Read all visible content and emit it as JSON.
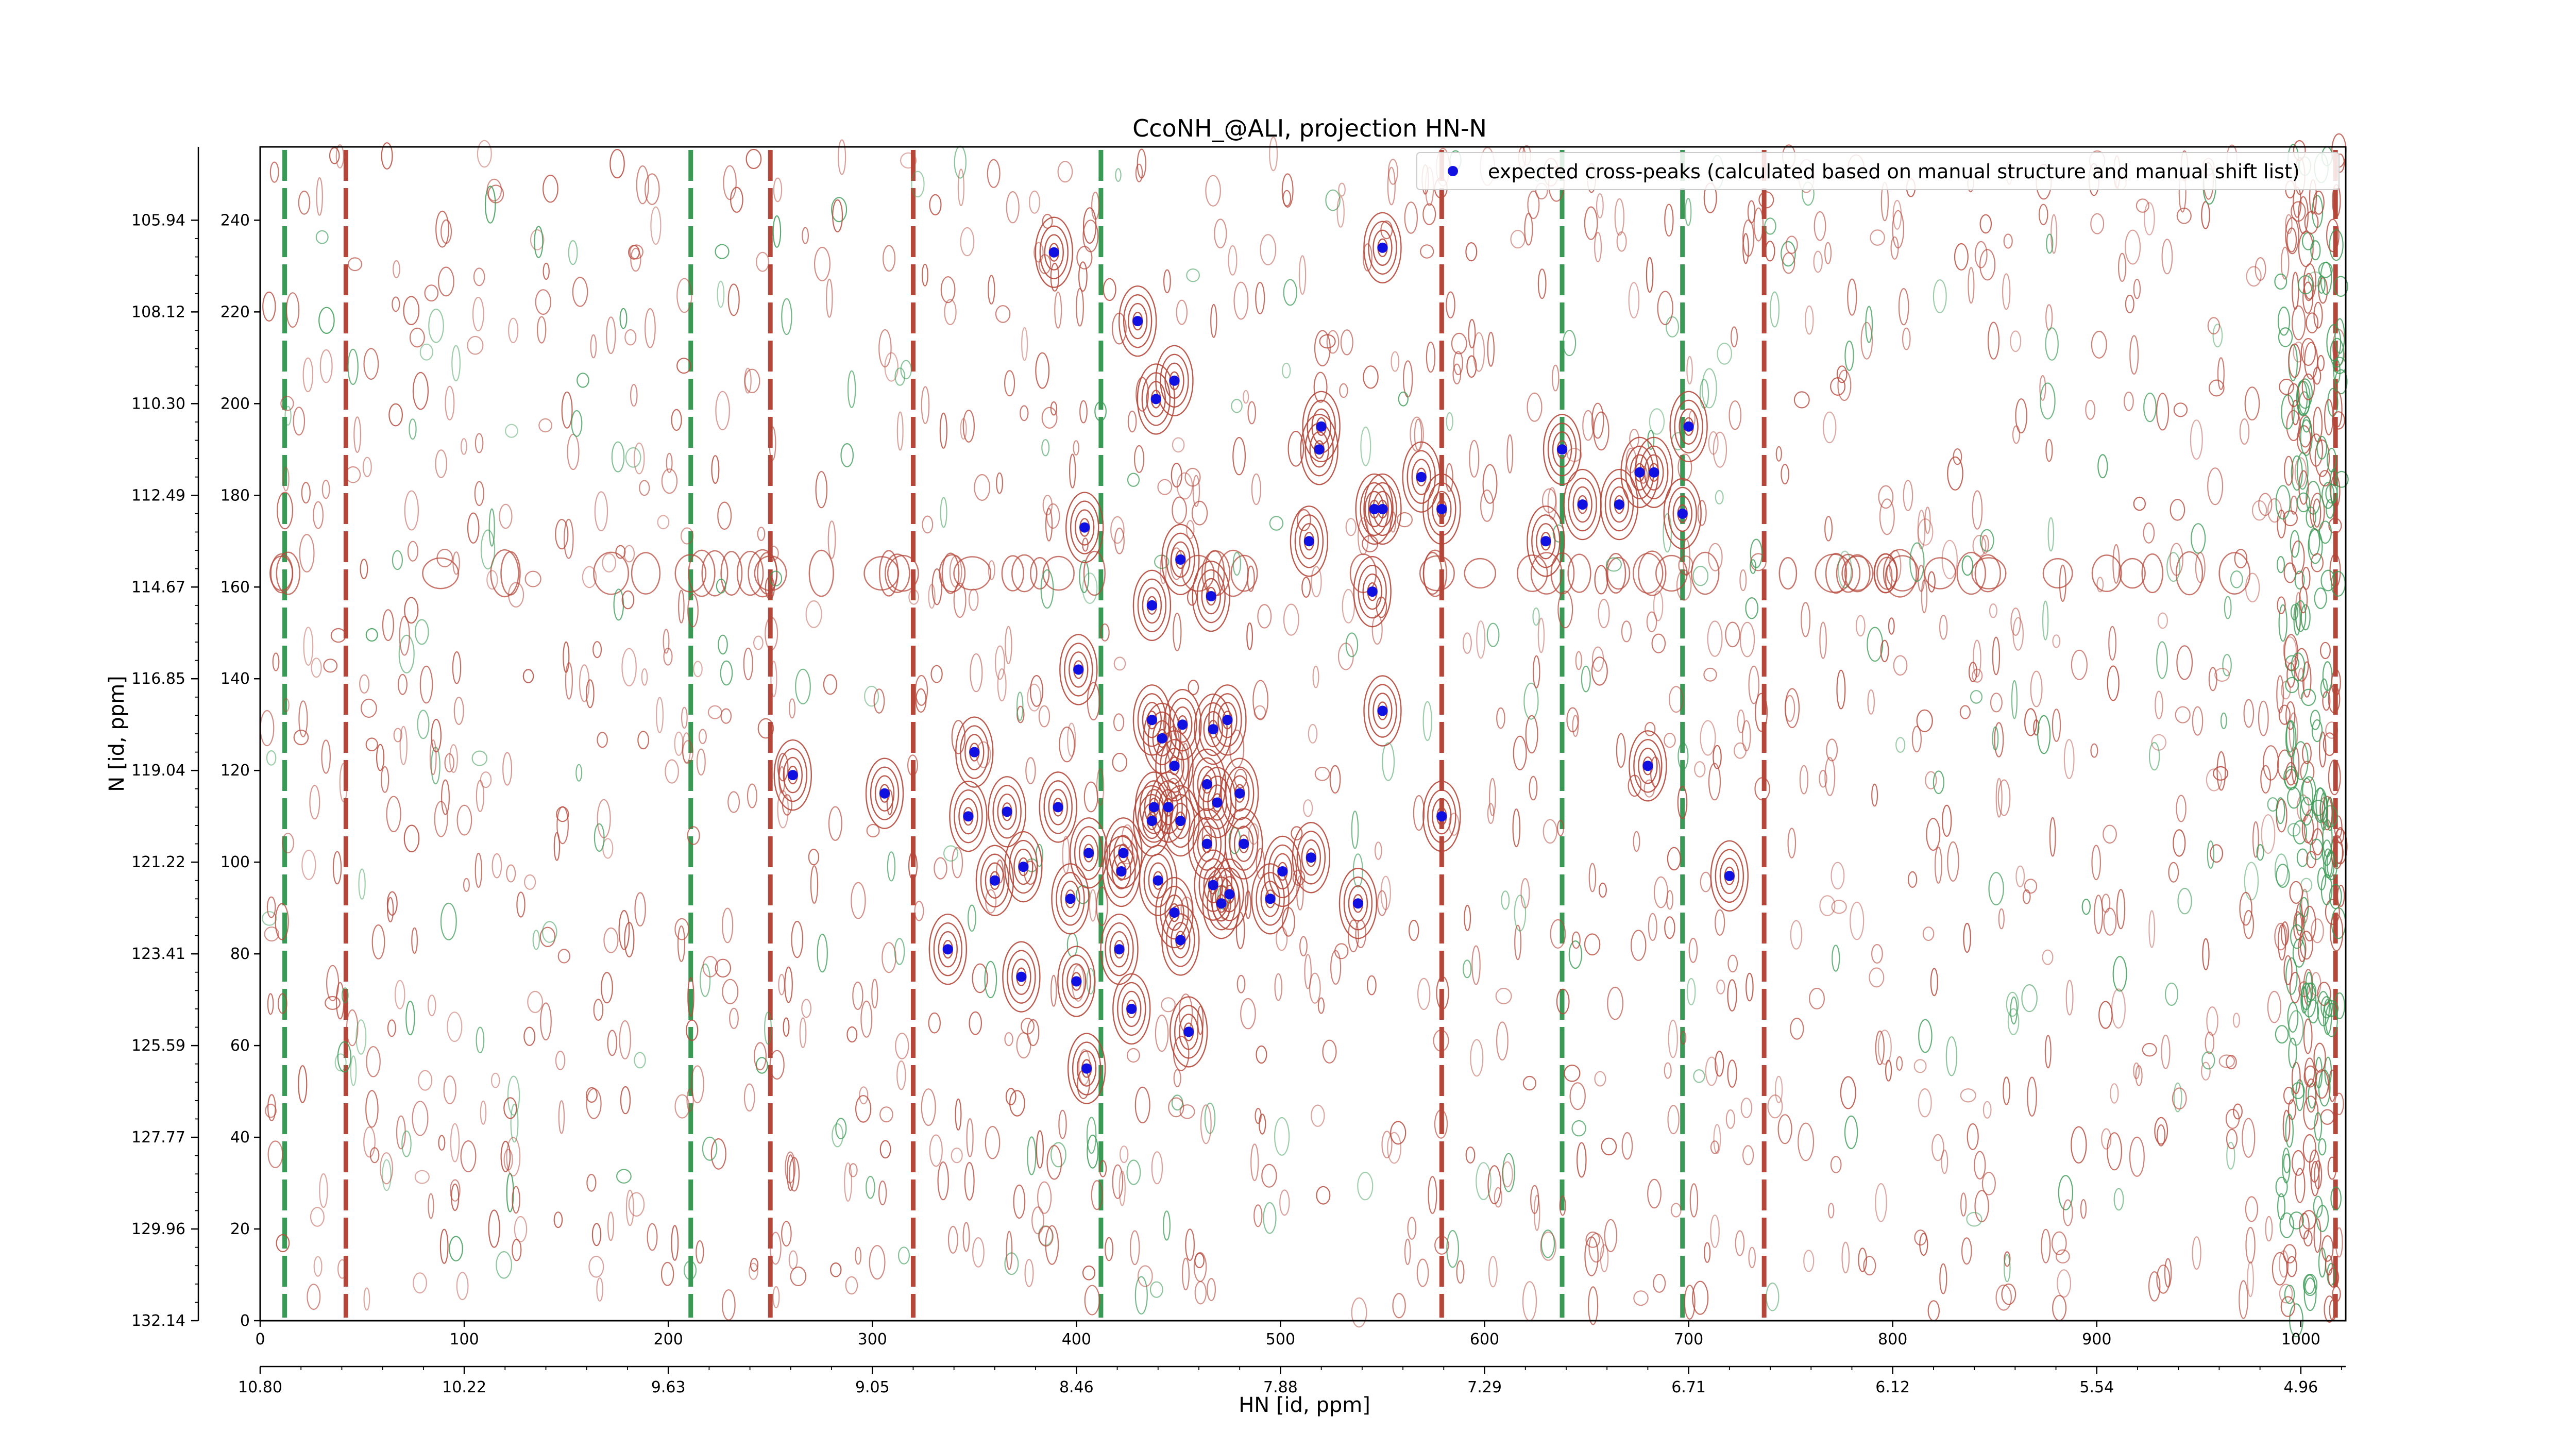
{
  "chart_data": {
    "type": "scatter",
    "title": "CcoNH_@ALI, projection HN-N",
    "xlabel": "HN [id, ppm]",
    "ylabel": "N [id, ppm]",
    "x_points_ticks": [
      "0",
      "100",
      "200",
      "300",
      "400",
      "500",
      "600",
      "700",
      "800",
      "900",
      "1000"
    ],
    "x_ppm_ticks": [
      "10.80",
      "10.22",
      "9.63",
      "9.05",
      "8.46",
      "7.88",
      "7.29",
      "6.71",
      "6.12",
      "5.54",
      "4.96"
    ],
    "y_points_ticks": [
      "0",
      "20",
      "40",
      "60",
      "80",
      "100",
      "120",
      "140",
      "160",
      "180",
      "200",
      "220",
      "240"
    ],
    "y_ppm_ticks": [
      "132.14",
      "129.96",
      "127.77",
      "125.59",
      "123.41",
      "121.22",
      "119.04",
      "116.85",
      "114.67",
      "112.49",
      "110.30",
      "108.12",
      "105.94"
    ],
    "xlim": [
      0,
      1022
    ],
    "ylim": [
      0,
      256
    ],
    "legend": {
      "position": "top-right",
      "label": "expected cross-peaks (calculated based on manual structure and manual shift list)"
    },
    "colors": {
      "positive_contour": "#b5473a",
      "negative_contour": "#3a9a55",
      "peak_marker": "#1010e0",
      "axes": "#000000"
    },
    "series": [
      {
        "name": "expected cross-peaks (calculated based on manual structure and manual shift list)",
        "points": [
          [
            389,
            233
          ],
          [
            550,
            234
          ],
          [
            430,
            218
          ],
          [
            439,
            201
          ],
          [
            448,
            205
          ],
          [
            520,
            195
          ],
          [
            519,
            190
          ],
          [
            700,
            195
          ],
          [
            638,
            190
          ],
          [
            676,
            185
          ],
          [
            683,
            185
          ],
          [
            569,
            184
          ],
          [
            648,
            178
          ],
          [
            666,
            178
          ],
          [
            546,
            177
          ],
          [
            550,
            177
          ],
          [
            579,
            177
          ],
          [
            697,
            176
          ],
          [
            404,
            173
          ],
          [
            514,
            170
          ],
          [
            630,
            170
          ],
          [
            451,
            166
          ],
          [
            545,
            159
          ],
          [
            466,
            158
          ],
          [
            437,
            156
          ],
          [
            401,
            142
          ],
          [
            550,
            133
          ],
          [
            437,
            131
          ],
          [
            467,
            129
          ],
          [
            474,
            131
          ],
          [
            452,
            130
          ],
          [
            442,
            127
          ],
          [
            448,
            121
          ],
          [
            480,
            115
          ],
          [
            261,
            119
          ],
          [
            306,
            115
          ],
          [
            350,
            124
          ],
          [
            680,
            121
          ],
          [
            579,
            110
          ],
          [
            347,
            110
          ],
          [
            366,
            111
          ],
          [
            391,
            112
          ],
          [
            464,
            117
          ],
          [
            438,
            112
          ],
          [
            445,
            112
          ],
          [
            437,
            109
          ],
          [
            451,
            109
          ],
          [
            469,
            113
          ],
          [
            464,
            104
          ],
          [
            482,
            104
          ],
          [
            515,
            101
          ],
          [
            406,
            102
          ],
          [
            423,
            102
          ],
          [
            422,
            98
          ],
          [
            501,
            98
          ],
          [
            720,
            97
          ],
          [
            360,
            96
          ],
          [
            374,
            99
          ],
          [
            440,
            96
          ],
          [
            467,
            95
          ],
          [
            475,
            93
          ],
          [
            471,
            91
          ],
          [
            495,
            92
          ],
          [
            538,
            91
          ],
          [
            397,
            92
          ],
          [
            448,
            89
          ],
          [
            451,
            83
          ],
          [
            337,
            81
          ],
          [
            421,
            81
          ],
          [
            373,
            75
          ],
          [
            400,
            74
          ],
          [
            427,
            68
          ],
          [
            455,
            63
          ],
          [
            405,
            55
          ]
        ]
      }
    ]
  }
}
